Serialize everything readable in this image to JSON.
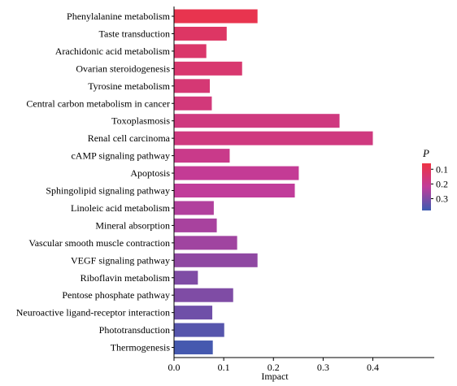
{
  "chart_data": {
    "type": "bar",
    "orientation": "horizontal",
    "xlabel": "Impact",
    "ylabel": "",
    "xlim": [
      0,
      0.44
    ],
    "xticks": [
      "0.0",
      "0.1",
      "0.2",
      "0.3",
      "0.4"
    ],
    "categories": [
      "Phenylalanine metabolism",
      "Taste transduction",
      "Arachidonic acid metabolism",
      "Ovarian steroidogenesis",
      "Tyrosine metabolism",
      "Central carbon metabolism in cancer",
      "Toxoplasmosis",
      "Renal cell carcinoma",
      "cAMP signaling pathway",
      "Apoptosis",
      "Sphingolipid signaling pathway",
      "Linoleic acid metabolism",
      "Mineral absorption",
      "Vascular smooth muscle contraction",
      "VEGF signaling pathway",
      "Riboflavin metabolism",
      "Pentose phosphate pathway",
      "Neuroactive ligand-receptor interaction",
      "Phototransduction",
      "Thermogenesis"
    ],
    "values": [
      0.168,
      0.106,
      0.065,
      0.137,
      0.072,
      0.076,
      0.333,
      0.4,
      0.112,
      0.251,
      0.243,
      0.08,
      0.086,
      0.127,
      0.168,
      0.048,
      0.119,
      0.077,
      0.101,
      0.078
    ],
    "p_values": [
      0.08,
      0.12,
      0.13,
      0.14,
      0.15,
      0.16,
      0.17,
      0.17,
      0.19,
      0.21,
      0.22,
      0.24,
      0.25,
      0.26,
      0.28,
      0.3,
      0.3,
      0.32,
      0.35,
      0.37
    ],
    "legend": {
      "title": "P",
      "ticks": [
        "0.1",
        "0.2",
        "0.3"
      ],
      "tick_values": [
        0.1,
        0.2,
        0.3
      ],
      "range": [
        0.06,
        0.38
      ],
      "low_color": "#ee3344",
      "mid_color": "#c13c9a",
      "high_color": "#3d5bb0",
      "placement": "right"
    },
    "grid": false
  }
}
